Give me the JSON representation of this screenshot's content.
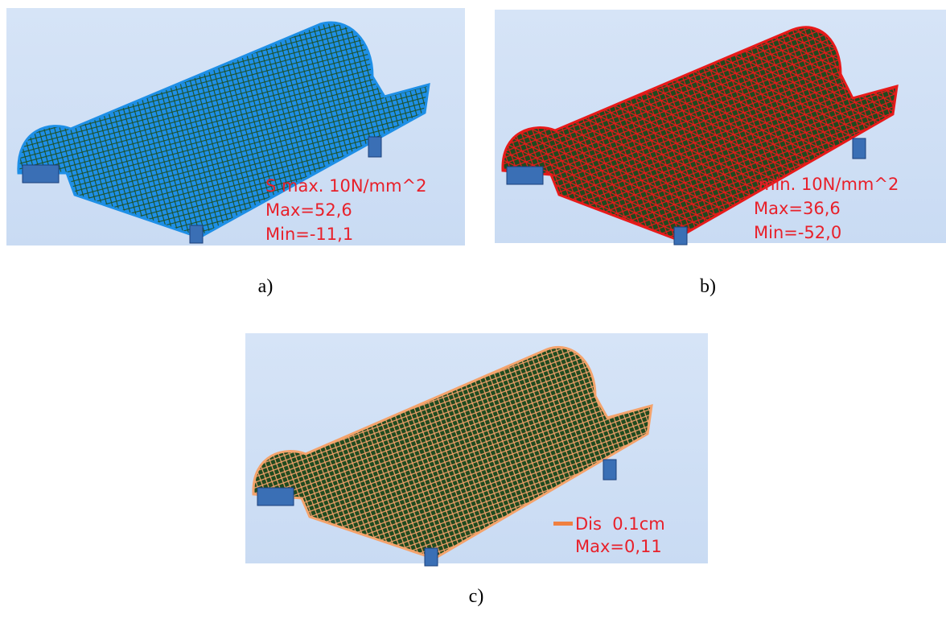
{
  "panels": [
    {
      "legend": [
        "S max. 10N/mm^2",
        "Max=52,6",
        "Min=-11,1"
      ],
      "caption": "a)"
    },
    {
      "legend": [
        "min. 10N/mm^2",
        "Max=36,6",
        "Min=-52,0"
      ],
      "caption": "b)"
    },
    {
      "legend": [
        "Dis  0.1cm",
        "Max=0,11"
      ],
      "caption": "c)"
    }
  ]
}
